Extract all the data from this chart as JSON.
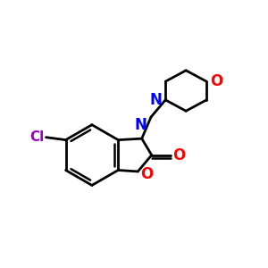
{
  "background_color": "#ffffff",
  "atom_colors": {
    "N": "#0000ff",
    "O": "#ff0000",
    "Cl": "#9900cc",
    "C": "#000000"
  },
  "bond_color": "#000000",
  "bond_width": 2.0,
  "figsize": [
    3.0,
    3.0
  ],
  "dpi": 100
}
